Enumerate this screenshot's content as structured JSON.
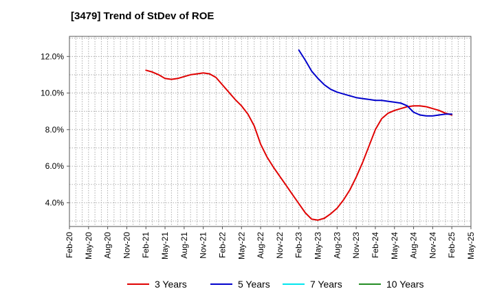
{
  "chart_data": {
    "type": "line",
    "title": "[3479]  Trend of StDev of ROE",
    "xlabel": "",
    "ylabel": "",
    "x_ticks": [
      "Feb-20",
      "May-20",
      "Aug-20",
      "Nov-20",
      "Feb-21",
      "May-21",
      "Aug-21",
      "Nov-21",
      "Feb-22",
      "May-22",
      "Aug-22",
      "Nov-22",
      "Feb-23",
      "May-23",
      "Aug-23",
      "Nov-23",
      "Feb-24",
      "May-24",
      "Aug-24",
      "Nov-24",
      "Feb-25",
      "May-25"
    ],
    "y_ticks": [
      4.0,
      6.0,
      8.0,
      10.0,
      12.0
    ],
    "y_tick_labels": [
      "4.0%",
      "6.0%",
      "8.0%",
      "10.0%",
      "12.0%"
    ],
    "ylim": [
      2.7,
      13.1
    ],
    "grid": "dotted, both axes, monthly vertical lines",
    "legend_position": "bottom",
    "series": [
      {
        "name": "3 Years",
        "color": "#e00000",
        "points": [
          [
            "Feb-21",
            11.25
          ],
          [
            "Mar-21",
            11.15
          ],
          [
            "Apr-21",
            11.0
          ],
          [
            "May-21",
            10.8
          ],
          [
            "Jun-21",
            10.75
          ],
          [
            "Jul-21",
            10.8
          ],
          [
            "Aug-21",
            10.9
          ],
          [
            "Sep-21",
            11.0
          ],
          [
            "Oct-21",
            11.05
          ],
          [
            "Nov-21",
            11.1
          ],
          [
            "Dec-21",
            11.05
          ],
          [
            "Jan-22",
            10.85
          ],
          [
            "Feb-22",
            10.45
          ],
          [
            "Mar-22",
            10.05
          ],
          [
            "Apr-22",
            9.65
          ],
          [
            "May-22",
            9.3
          ],
          [
            "Jun-22",
            8.85
          ],
          [
            "Jul-22",
            8.2
          ],
          [
            "Aug-22",
            7.2
          ],
          [
            "Sep-22",
            6.5
          ],
          [
            "Oct-22",
            5.95
          ],
          [
            "Nov-22",
            5.45
          ],
          [
            "Dec-22",
            4.95
          ],
          [
            "Jan-23",
            4.45
          ],
          [
            "Feb-23",
            3.95
          ],
          [
            "Mar-23",
            3.45
          ],
          [
            "Apr-23",
            3.1
          ],
          [
            "May-23",
            3.05
          ],
          [
            "Jun-23",
            3.15
          ],
          [
            "Jul-23",
            3.4
          ],
          [
            "Aug-23",
            3.7
          ],
          [
            "Sep-23",
            4.15
          ],
          [
            "Oct-23",
            4.7
          ],
          [
            "Nov-23",
            5.4
          ],
          [
            "Dec-23",
            6.2
          ],
          [
            "Jan-24",
            7.1
          ],
          [
            "Feb-24",
            8.0
          ],
          [
            "Mar-24",
            8.6
          ],
          [
            "Apr-24",
            8.9
          ],
          [
            "May-24",
            9.05
          ],
          [
            "Jun-24",
            9.15
          ],
          [
            "Jul-24",
            9.25
          ],
          [
            "Aug-24",
            9.3
          ],
          [
            "Sep-24",
            9.3
          ],
          [
            "Oct-24",
            9.25
          ],
          [
            "Nov-24",
            9.15
          ],
          [
            "Dec-24",
            9.05
          ],
          [
            "Jan-25",
            8.9
          ],
          [
            "Feb-25",
            8.8
          ]
        ]
      },
      {
        "name": "5 Years",
        "color": "#0000cc",
        "points": [
          [
            "Feb-23",
            12.35
          ],
          [
            "Mar-23",
            11.8
          ],
          [
            "Apr-23",
            11.2
          ],
          [
            "May-23",
            10.8
          ],
          [
            "Jun-23",
            10.45
          ],
          [
            "Jul-23",
            10.2
          ],
          [
            "Aug-23",
            10.05
          ],
          [
            "Sep-23",
            9.95
          ],
          [
            "Oct-23",
            9.85
          ],
          [
            "Nov-23",
            9.75
          ],
          [
            "Dec-23",
            9.7
          ],
          [
            "Jan-24",
            9.65
          ],
          [
            "Feb-24",
            9.6
          ],
          [
            "Mar-24",
            9.6
          ],
          [
            "Apr-24",
            9.55
          ],
          [
            "May-24",
            9.5
          ],
          [
            "Jun-24",
            9.45
          ],
          [
            "Jul-24",
            9.3
          ],
          [
            "Aug-24",
            8.95
          ],
          [
            "Sep-24",
            8.8
          ],
          [
            "Oct-24",
            8.75
          ],
          [
            "Nov-24",
            8.75
          ],
          [
            "Dec-24",
            8.8
          ],
          [
            "Jan-25",
            8.85
          ],
          [
            "Feb-25",
            8.85
          ]
        ]
      },
      {
        "name": "7 Years",
        "color": "#00e5ee",
        "points": []
      },
      {
        "name": "10 Years",
        "color": "#228b22",
        "points": []
      }
    ]
  }
}
